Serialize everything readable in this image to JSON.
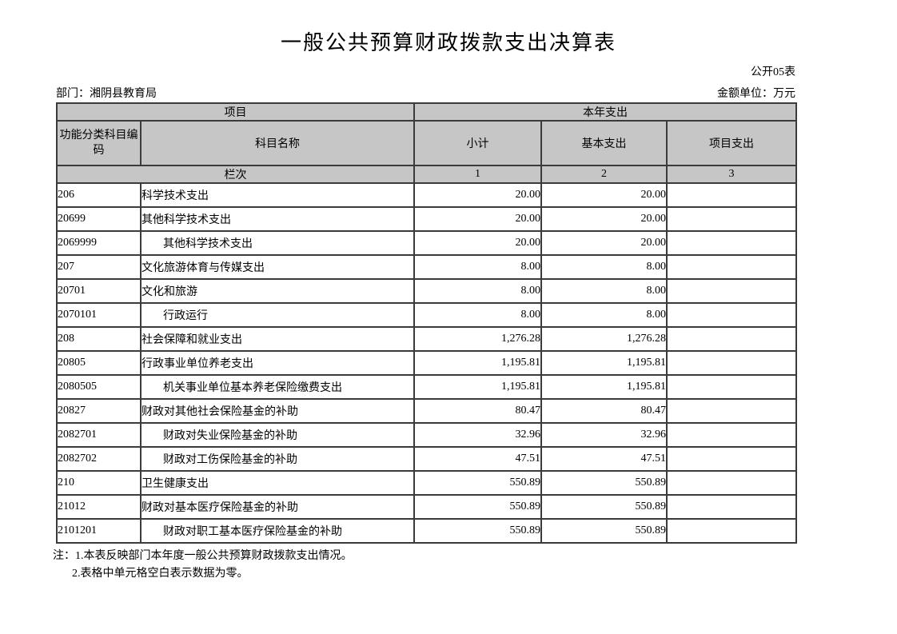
{
  "page": {
    "title": "一般公共预算财政拨款支出决算表",
    "sheet_label": "公开05表",
    "department": "部门：湘阴县教育局",
    "unit": "金额单位：万元"
  },
  "table": {
    "header": {
      "project_group": "项目",
      "current_year_group": "本年支出",
      "code_col": "功能分类科目编码",
      "name_col": "科目名称",
      "subtotal_col": "小计",
      "basic_col": "基本支出",
      "project_col": "项目支出",
      "rank_label": "栏次",
      "rank_1": "1",
      "rank_2": "2",
      "rank_3": "3"
    },
    "rows": [
      {
        "code": "206",
        "name": "科学技术支出",
        "indent": false,
        "subtotal": "20.00",
        "basic": "20.00",
        "project": ""
      },
      {
        "code": "20699",
        "name": "其他科学技术支出",
        "indent": false,
        "subtotal": "20.00",
        "basic": "20.00",
        "project": ""
      },
      {
        "code": "2069999",
        "name": "其他科学技术支出",
        "indent": true,
        "subtotal": "20.00",
        "basic": "20.00",
        "project": ""
      },
      {
        "code": "207",
        "name": "文化旅游体育与传媒支出",
        "indent": false,
        "subtotal": "8.00",
        "basic": "8.00",
        "project": ""
      },
      {
        "code": "20701",
        "name": "文化和旅游",
        "indent": false,
        "subtotal": "8.00",
        "basic": "8.00",
        "project": ""
      },
      {
        "code": "2070101",
        "name": "行政运行",
        "indent": true,
        "subtotal": "8.00",
        "basic": "8.00",
        "project": ""
      },
      {
        "code": "208",
        "name": "社会保障和就业支出",
        "indent": false,
        "subtotal": "1,276.28",
        "basic": "1,276.28",
        "project": ""
      },
      {
        "code": "20805",
        "name": "行政事业单位养老支出",
        "indent": false,
        "subtotal": "1,195.81",
        "basic": "1,195.81",
        "project": ""
      },
      {
        "code": "2080505",
        "name": "机关事业单位基本养老保险缴费支出",
        "indent": true,
        "subtotal": "1,195.81",
        "basic": "1,195.81",
        "project": ""
      },
      {
        "code": "20827",
        "name": "财政对其他社会保险基金的补助",
        "indent": false,
        "subtotal": "80.47",
        "basic": "80.47",
        "project": ""
      },
      {
        "code": "2082701",
        "name": "财政对失业保险基金的补助",
        "indent": true,
        "subtotal": "32.96",
        "basic": "32.96",
        "project": ""
      },
      {
        "code": "2082702",
        "name": "财政对工伤保险基金的补助",
        "indent": true,
        "subtotal": "47.51",
        "basic": "47.51",
        "project": ""
      },
      {
        "code": "210",
        "name": "卫生健康支出",
        "indent": false,
        "subtotal": "550.89",
        "basic": "550.89",
        "project": ""
      },
      {
        "code": "21012",
        "name": "财政对基本医疗保险基金的补助",
        "indent": false,
        "subtotal": "550.89",
        "basic": "550.89",
        "project": ""
      },
      {
        "code": "2101201",
        "name": "财政对职工基本医疗保险基金的补助",
        "indent": true,
        "subtotal": "550.89",
        "basic": "550.89",
        "project": ""
      }
    ]
  },
  "notes": {
    "line1": "注：1.本表反映部门本年度一般公共预算财政拨款支出情况。",
    "line2": "2.表格中单元格空白表示数据为零。"
  },
  "colors": {
    "header_bg": "#c6c6c6",
    "border": "#3b3b3b",
    "text": "#000000",
    "page_bg": "#ffffff"
  }
}
